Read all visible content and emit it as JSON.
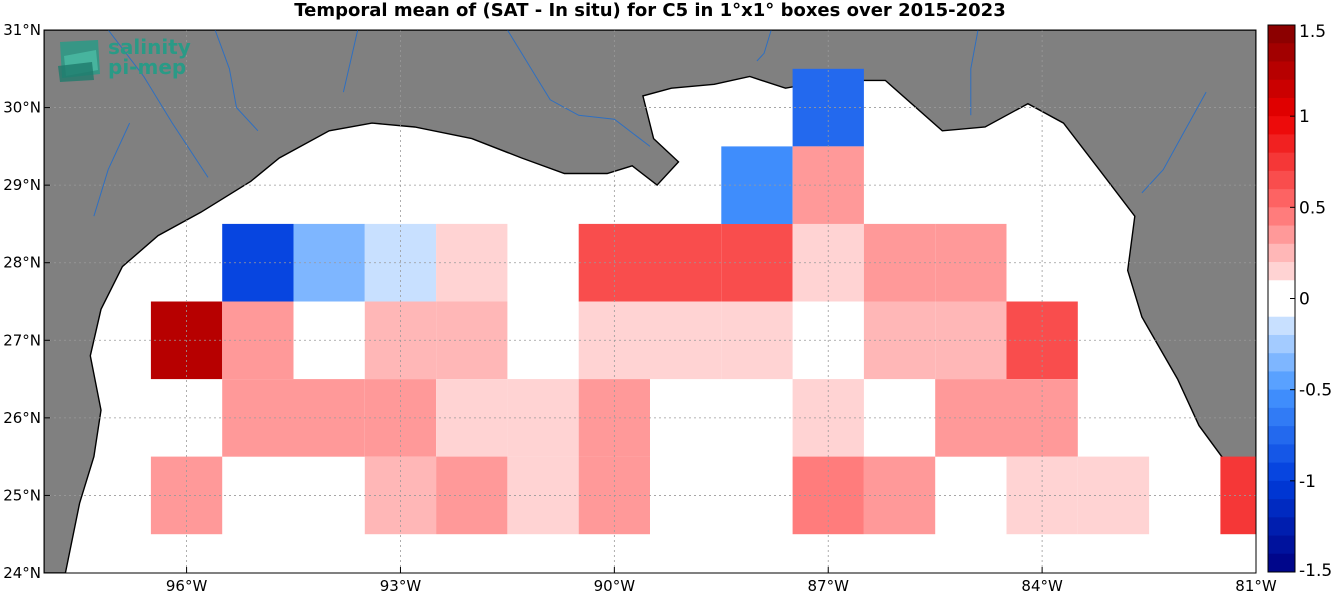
{
  "title": "Temporal mean of (SAT - In situ) for C5 in 1°x1° boxes over 2015-2023",
  "logo": {
    "line1": "salinity",
    "line2": "pi-mep",
    "icon": "salinity-pimep-logo-icon",
    "color": "#2a9a86"
  },
  "colors": {
    "land": "#808080",
    "ocean": "#ffffff",
    "river": "#2f6fc0",
    "coastline": "#000000"
  },
  "axes": {
    "lon_range": [
      -98,
      -81
    ],
    "lat_range": [
      24,
      31
    ],
    "lon_ticks": [
      -96,
      -93,
      -90,
      -87,
      -84,
      -81
    ],
    "lon_tick_labels": [
      "96°W",
      "93°W",
      "90°W",
      "87°W",
      "84°W",
      "81°W"
    ],
    "lat_ticks": [
      24,
      25,
      26,
      27,
      28,
      29,
      30,
      31
    ],
    "lat_tick_labels": [
      "24°N",
      "25°N",
      "26°N",
      "27°N",
      "28°N",
      "29°N",
      "30°N",
      "31°N"
    ],
    "grid": true
  },
  "colorbar": {
    "range": [
      -1.5,
      1.5
    ],
    "steps": 30,
    "ticks": [
      1.5,
      1,
      0.5,
      0,
      -0.5,
      -1,
      -1.5
    ],
    "tick_labels": [
      "1.5",
      "1",
      "0.5",
      "0",
      "-0.5",
      "-1",
      "-1.5"
    ]
  },
  "chart_data": {
    "type": "heatmap",
    "cell_size_deg": 1,
    "cells": [
      {
        "lon": -96,
        "lat": 27,
        "value": 1.2
      },
      {
        "lon": -95,
        "lat": 28,
        "value": -0.95
      },
      {
        "lon": -94,
        "lat": 28,
        "value": -0.3
      },
      {
        "lon": -93,
        "lat": 28,
        "value": -0.15
      },
      {
        "lon": -92,
        "lat": 28,
        "value": 0.15
      },
      {
        "lon": -90,
        "lat": 28,
        "value": 0.6
      },
      {
        "lon": -89,
        "lat": 28,
        "value": 0.6
      },
      {
        "lon": -88,
        "lat": 28,
        "value": 0.6
      },
      {
        "lon": -88,
        "lat": 29,
        "value": -0.55
      },
      {
        "lon": -87,
        "lat": 30,
        "value": -0.75
      },
      {
        "lon": -87,
        "lat": 29,
        "value": 0.3
      },
      {
        "lon": -87,
        "lat": 28,
        "value": 0.15
      },
      {
        "lon": -86,
        "lat": 28,
        "value": 0.3
      },
      {
        "lon": -85,
        "lat": 28,
        "value": 0.3
      },
      {
        "lon": -95,
        "lat": 27,
        "value": 0.3
      },
      {
        "lon": -93,
        "lat": 27,
        "value": 0.2
      },
      {
        "lon": -92,
        "lat": 27,
        "value": 0.2
      },
      {
        "lon": -90,
        "lat": 27,
        "value": 0.15
      },
      {
        "lon": -89,
        "lat": 27,
        "value": 0.15
      },
      {
        "lon": -88,
        "lat": 27,
        "value": 0.15
      },
      {
        "lon": -86,
        "lat": 27,
        "value": 0.2
      },
      {
        "lon": -85,
        "lat": 27,
        "value": 0.2
      },
      {
        "lon": -84,
        "lat": 27,
        "value": 0.65
      },
      {
        "lon": -95,
        "lat": 26,
        "value": 0.3
      },
      {
        "lon": -94,
        "lat": 26,
        "value": 0.3
      },
      {
        "lon": -93,
        "lat": 26,
        "value": 0.3
      },
      {
        "lon": -92,
        "lat": 26,
        "value": 0.15
      },
      {
        "lon": -91,
        "lat": 26,
        "value": 0.15
      },
      {
        "lon": -90,
        "lat": 26,
        "value": 0.3
      },
      {
        "lon": -87,
        "lat": 26,
        "value": 0.15
      },
      {
        "lon": -85,
        "lat": 26,
        "value": 0.3
      },
      {
        "lon": -84,
        "lat": 26,
        "value": 0.3
      },
      {
        "lon": -96,
        "lat": 25,
        "value": 0.3
      },
      {
        "lon": -93,
        "lat": 25,
        "value": 0.2
      },
      {
        "lon": -92,
        "lat": 25,
        "value": 0.35
      },
      {
        "lon": -91,
        "lat": 25,
        "value": 0.15
      },
      {
        "lon": -90,
        "lat": 25,
        "value": 0.3
      },
      {
        "lon": -87,
        "lat": 25,
        "value": 0.45
      },
      {
        "lon": -86,
        "lat": 25,
        "value": 0.3
      },
      {
        "lon": -84,
        "lat": 25,
        "value": 0.15
      },
      {
        "lon": -83,
        "lat": 25,
        "value": 0.15
      },
      {
        "lon": -81,
        "lat": 25,
        "value": 0.7
      }
    ]
  }
}
